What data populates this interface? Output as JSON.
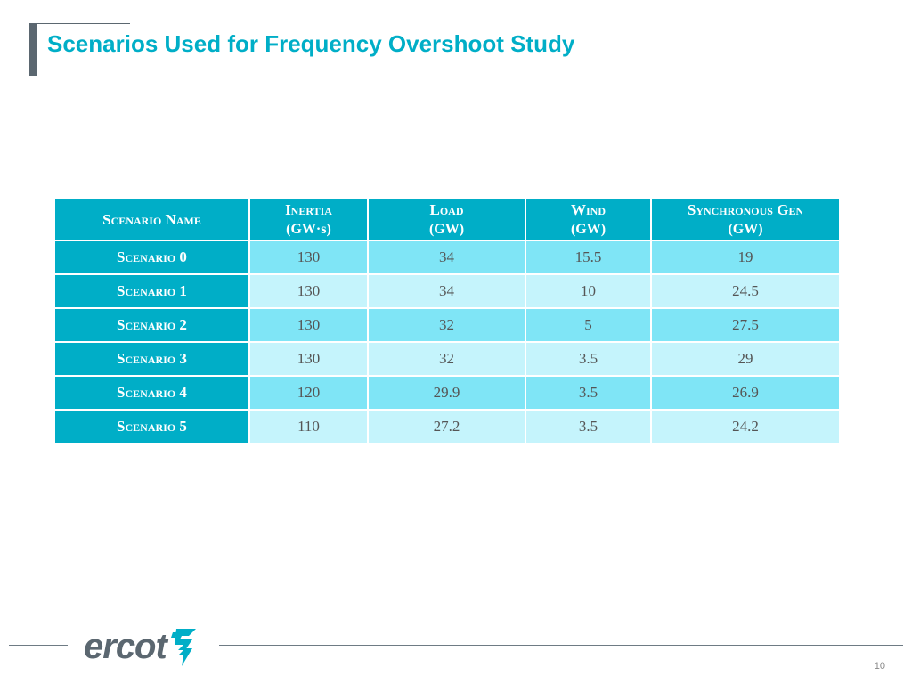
{
  "slide": {
    "title": "Scenarios Used for Frequency Overshoot Study",
    "page_number": "10",
    "logo_text": "ercot",
    "colors": {
      "accent": "#00aec7",
      "row_odd": "#7fe5f6",
      "row_even": "#c5f4fc",
      "gray": "#5b6770"
    }
  },
  "table": {
    "headers": [
      {
        "name": "Scenario Name",
        "unit": ""
      },
      {
        "name": "Inertia",
        "unit": "(GW·s)"
      },
      {
        "name": "Load",
        "unit": "(GW)"
      },
      {
        "name": "Wind",
        "unit": "(GW)"
      },
      {
        "name": "Synchronous Gen",
        "unit": "(GW)"
      }
    ],
    "rows": [
      {
        "name": "Scenario 0",
        "inertia": "130",
        "load": "34",
        "wind": "15.5",
        "sync_gen": "19"
      },
      {
        "name": "Scenario 1",
        "inertia": "130",
        "load": "34",
        "wind": "10",
        "sync_gen": "24.5"
      },
      {
        "name": "Scenario 2",
        "inertia": "130",
        "load": "32",
        "wind": "5",
        "sync_gen": "27.5"
      },
      {
        "name": "Scenario 3",
        "inertia": "130",
        "load": "32",
        "wind": "3.5",
        "sync_gen": "29"
      },
      {
        "name": "Scenario 4",
        "inertia": "120",
        "load": "29.9",
        "wind": "3.5",
        "sync_gen": "26.9"
      },
      {
        "name": "Scenario 5",
        "inertia": "110",
        "load": "27.2",
        "wind": "3.5",
        "sync_gen": "24.2"
      }
    ]
  }
}
